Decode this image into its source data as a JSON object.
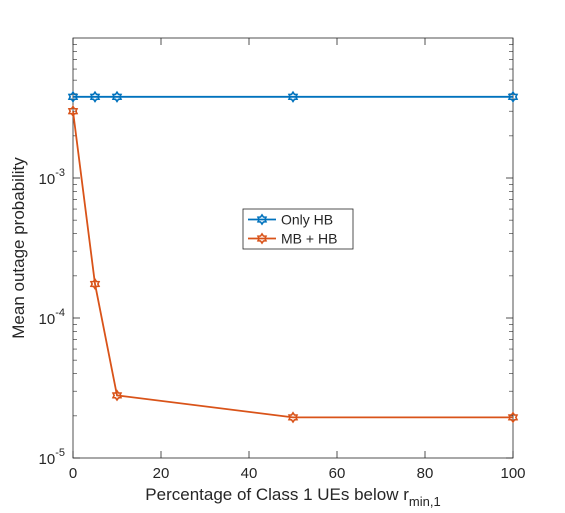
{
  "chart_data": {
    "type": "line",
    "xlabel": "Percentage of Class 1 UEs below r",
    "xlabel_sub": "min,1",
    "ylabel": "Mean outage probability",
    "xlim": [
      0,
      100
    ],
    "ylim": [
      1e-05,
      0.01
    ],
    "yscale": "log",
    "xticks": [
      0,
      20,
      40,
      60,
      80,
      100
    ],
    "yticks": [
      {
        "value": 1e-05,
        "base": "10",
        "exp": "-5"
      },
      {
        "value": 0.0001,
        "base": "10",
        "exp": "-4"
      },
      {
        "value": 0.001,
        "base": "10",
        "exp": "-3"
      }
    ],
    "grid": false,
    "legend_position": "center",
    "series": [
      {
        "name": "Only HB",
        "color": "#0072BD",
        "marker": "hexagram",
        "x": [
          0,
          5,
          10,
          50,
          100
        ],
        "y": [
          0.0038,
          0.0038,
          0.0038,
          0.0038,
          0.0038
        ]
      },
      {
        "name": "MB + HB",
        "color": "#D95319",
        "marker": "hexagram",
        "x": [
          0,
          5,
          10,
          50,
          100
        ],
        "y": [
          0.003,
          0.000175,
          2.8e-05,
          1.95e-05,
          1.95e-05
        ]
      }
    ]
  }
}
